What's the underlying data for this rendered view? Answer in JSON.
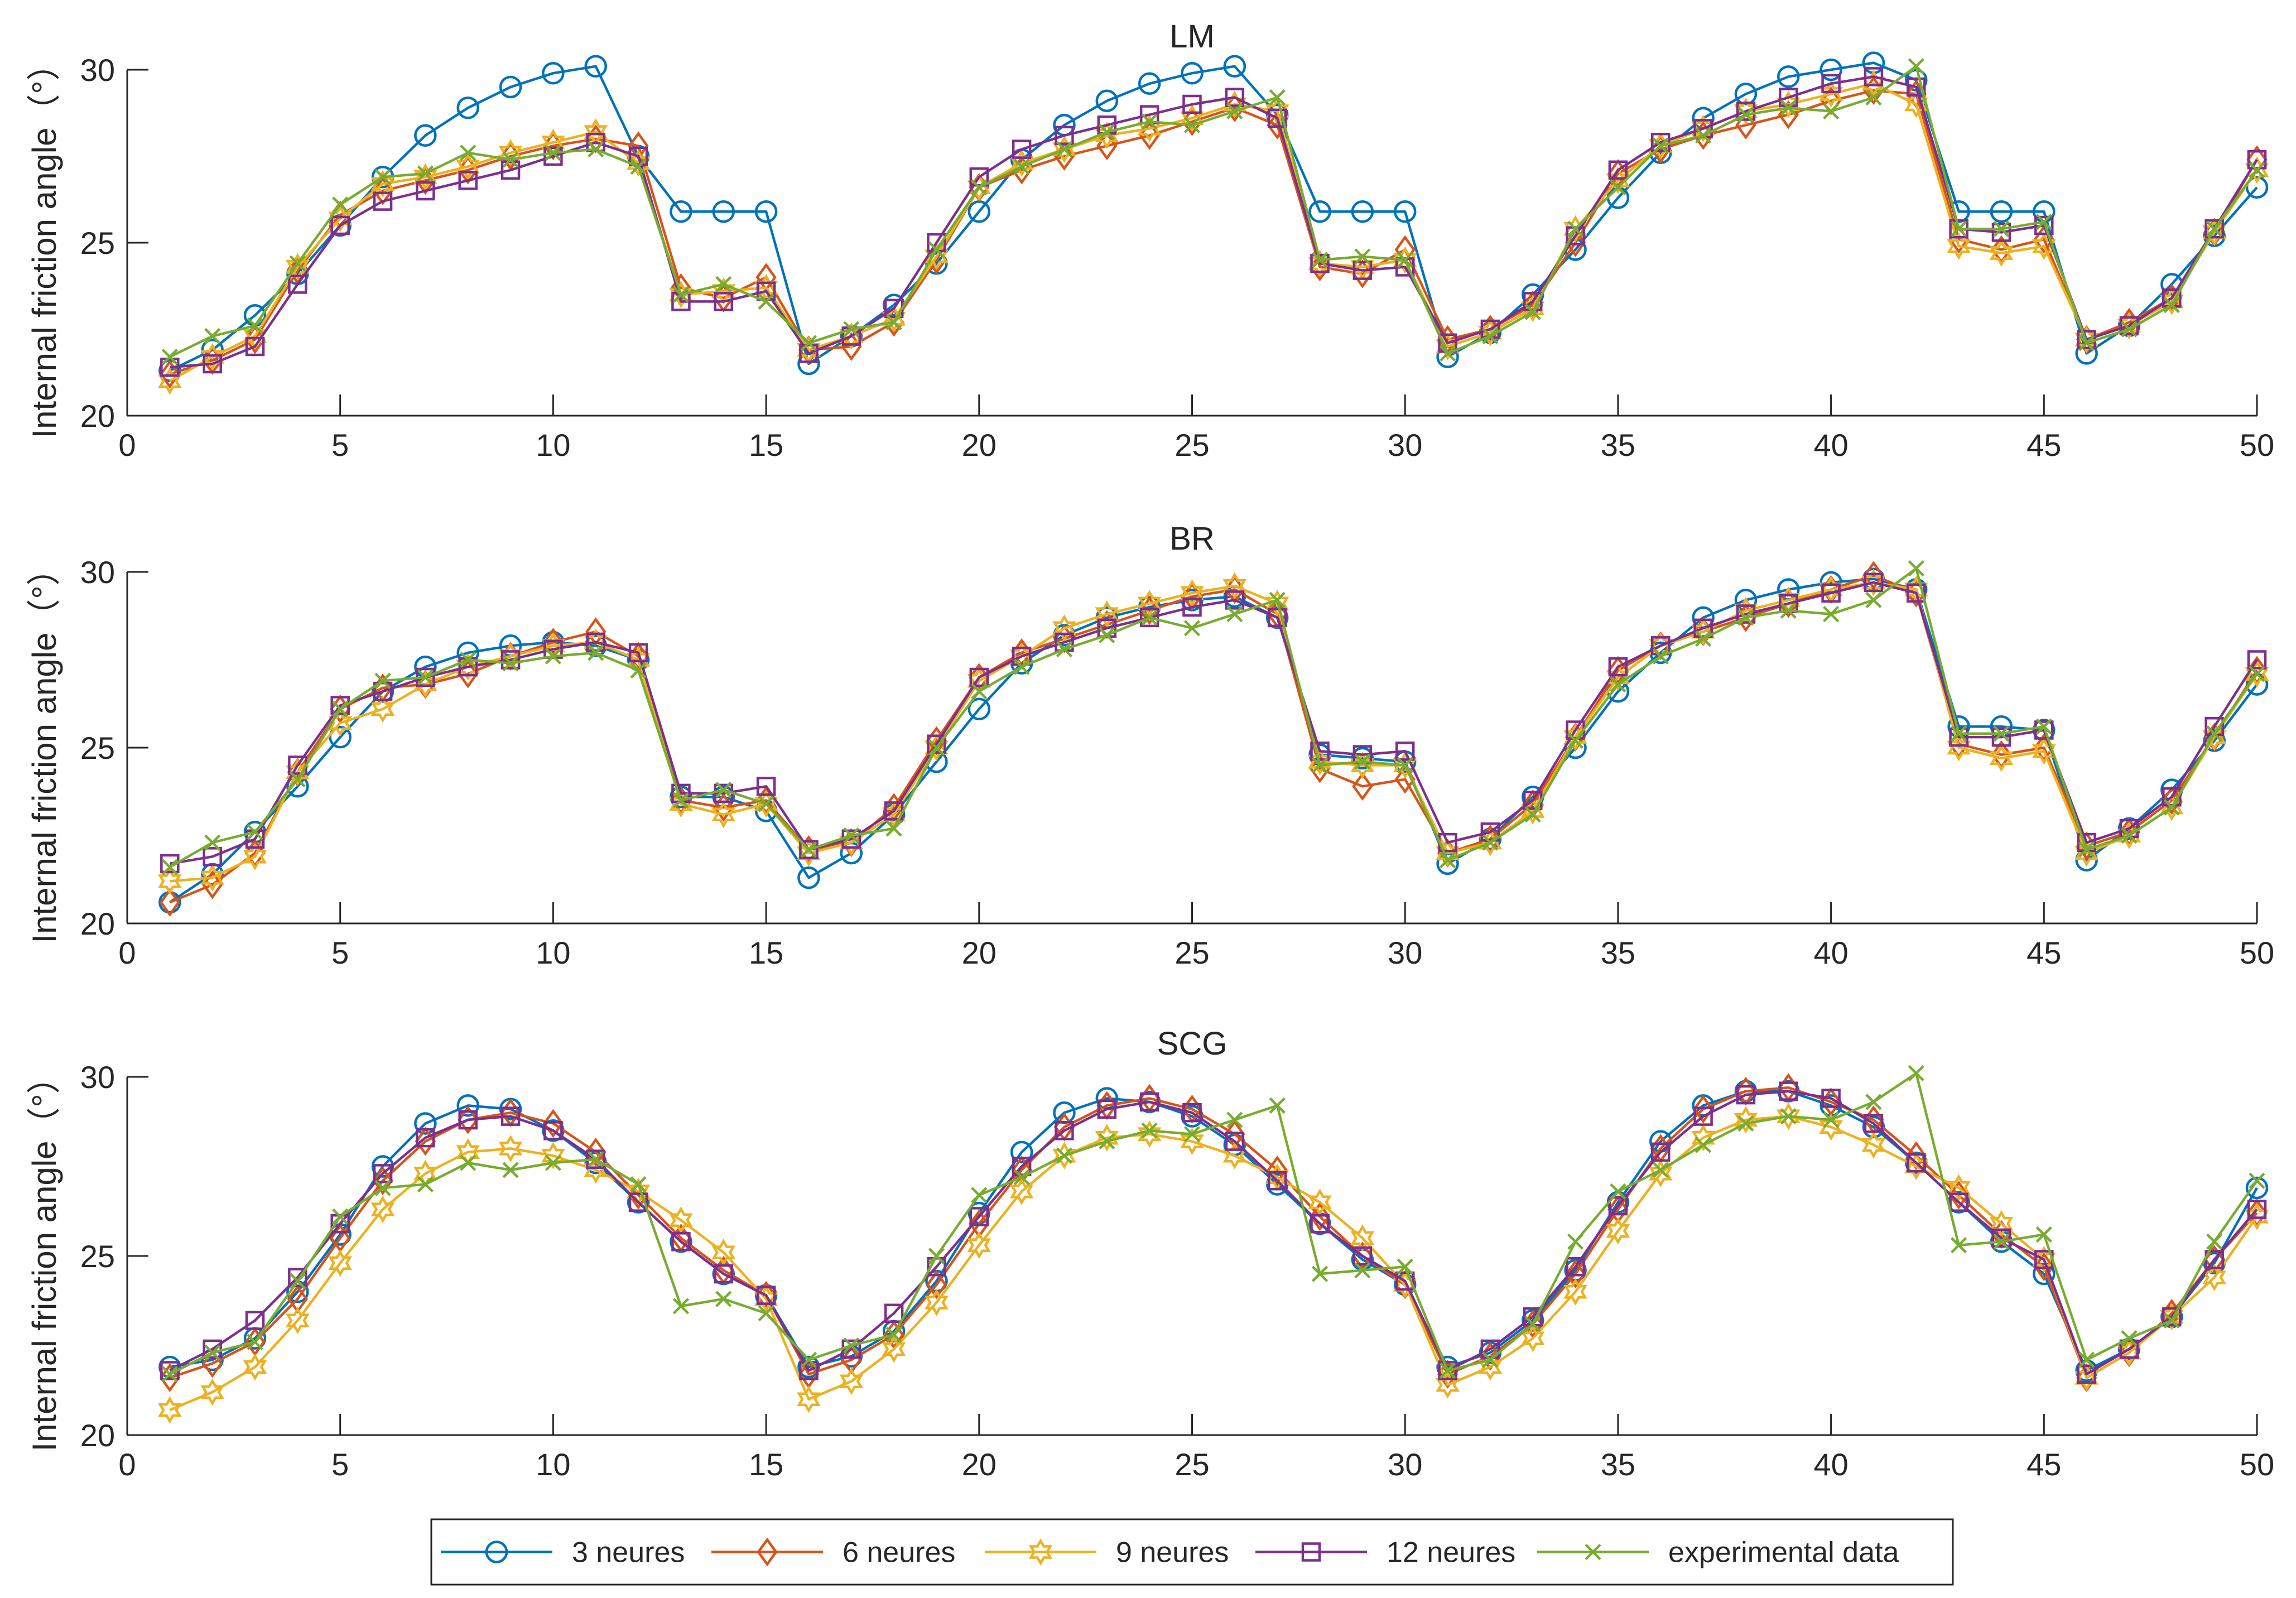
{
  "chart_data": [
    {
      "type": "line",
      "title": "LM",
      "ylabel": "Internal friction angle（°）",
      "xlim": [
        0,
        50
      ],
      "ylim": [
        20,
        30
      ],
      "xticks": [
        0,
        5,
        10,
        15,
        20,
        25,
        30,
        35,
        40,
        45,
        50
      ],
      "yticks": [
        20,
        25,
        30
      ],
      "x": [
        1,
        2,
        3,
        4,
        5,
        6,
        7,
        8,
        9,
        10,
        11,
        12,
        13,
        14,
        15,
        16,
        17,
        18,
        19,
        20,
        21,
        22,
        23,
        24,
        25,
        26,
        27,
        28,
        29,
        30,
        31,
        32,
        33,
        34,
        35,
        36,
        37,
        38,
        39,
        40,
        41,
        42,
        43,
        44,
        45,
        46,
        47,
        48,
        49,
        50
      ],
      "series": [
        {
          "name": "3 neures",
          "values": [
            21.3,
            21.9,
            22.9,
            24.1,
            25.5,
            26.9,
            28.1,
            28.9,
            29.5,
            29.9,
            30.1,
            27.5,
            25.9,
            25.9,
            25.9,
            21.5,
            22.3,
            23.2,
            24.4,
            25.9,
            27.4,
            28.4,
            29.1,
            29.6,
            29.9,
            30.1,
            28.7,
            25.9,
            25.9,
            25.9,
            21.7,
            22.4,
            23.5,
            24.8,
            26.3,
            27.6,
            28.6,
            29.3,
            29.8,
            30.0,
            30.2,
            29.7,
            25.9,
            25.9,
            25.9,
            21.8,
            22.6,
            23.8,
            25.2,
            26.6
          ]
        },
        {
          "name": "6 neures",
          "values": [
            21.2,
            21.6,
            22.2,
            24.2,
            25.8,
            26.5,
            26.8,
            27.1,
            27.5,
            27.8,
            28.0,
            27.8,
            23.7,
            23.4,
            24.0,
            21.9,
            22.0,
            22.7,
            24.5,
            26.6,
            27.1,
            27.5,
            27.8,
            28.1,
            28.5,
            28.9,
            28.4,
            24.3,
            24.1,
            24.8,
            22.2,
            22.5,
            23.2,
            25.0,
            27.0,
            27.7,
            28.1,
            28.4,
            28.7,
            29.1,
            29.4,
            29.3,
            25.1,
            24.8,
            25.1,
            22.2,
            22.7,
            23.4,
            25.3,
            27.4
          ]
        },
        {
          "name": "9 neures",
          "values": [
            21.0,
            21.7,
            22.3,
            24.3,
            25.7,
            26.7,
            26.9,
            27.2,
            27.6,
            27.9,
            28.2,
            27.3,
            23.5,
            23.6,
            23.7,
            21.9,
            22.3,
            22.8,
            24.6,
            26.6,
            27.3,
            27.7,
            28.1,
            28.3,
            28.6,
            29.0,
            28.8,
            24.4,
            24.3,
            24.5,
            22.0,
            22.4,
            23.1,
            25.4,
            26.8,
            27.8,
            28.3,
            28.8,
            29.0,
            29.3,
            29.6,
            29.0,
            24.9,
            24.7,
            24.9,
            22.2,
            22.6,
            23.3,
            25.3,
            27.1
          ]
        },
        {
          "name": "12 neures",
          "values": [
            21.4,
            21.5,
            22.0,
            23.8,
            25.5,
            26.2,
            26.5,
            26.8,
            27.1,
            27.5,
            27.9,
            27.5,
            23.3,
            23.3,
            23.6,
            21.8,
            22.3,
            23.1,
            25.0,
            26.9,
            27.7,
            28.1,
            28.4,
            28.7,
            29.0,
            29.2,
            28.6,
            24.4,
            24.2,
            24.3,
            22.1,
            22.5,
            23.3,
            25.2,
            27.1,
            27.9,
            28.3,
            28.8,
            29.2,
            29.6,
            29.8,
            29.5,
            25.4,
            25.3,
            25.5,
            22.2,
            22.6,
            23.4,
            25.4,
            27.4
          ]
        },
        {
          "name": "experimental data",
          "values": [
            21.7,
            22.3,
            22.6,
            24.4,
            26.1,
            26.9,
            27.0,
            27.6,
            27.4,
            27.6,
            27.7,
            27.2,
            23.5,
            23.8,
            23.3,
            22.1,
            22.5,
            22.7,
            24.8,
            26.6,
            27.2,
            27.7,
            28.2,
            28.5,
            28.4,
            28.8,
            29.2,
            24.5,
            24.6,
            24.5,
            21.8,
            22.3,
            23.0,
            25.4,
            26.6,
            27.8,
            28.1,
            28.7,
            28.9,
            28.8,
            29.2,
            30.1,
            25.4,
            25.4,
            25.6,
            22.1,
            22.5,
            23.2,
            25.4,
            27.1
          ]
        }
      ]
    },
    {
      "type": "line",
      "title": "BR",
      "ylabel": "Internal friction angle（°）",
      "xlim": [
        0,
        50
      ],
      "ylim": [
        20,
        30
      ],
      "xticks": [
        0,
        5,
        10,
        15,
        20,
        25,
        30,
        35,
        40,
        45,
        50
      ],
      "yticks": [
        20,
        25,
        30
      ],
      "x": [
        1,
        2,
        3,
        4,
        5,
        6,
        7,
        8,
        9,
        10,
        11,
        12,
        13,
        14,
        15,
        16,
        17,
        18,
        19,
        20,
        21,
        22,
        23,
        24,
        25,
        26,
        27,
        28,
        29,
        30,
        31,
        32,
        33,
        34,
        35,
        36,
        37,
        38,
        39,
        40,
        41,
        42,
        43,
        44,
        45,
        46,
        47,
        48,
        49,
        50
      ],
      "series": [
        {
          "name": "3 neures",
          "values": [
            20.6,
            21.4,
            22.6,
            23.9,
            25.3,
            26.6,
            27.3,
            27.7,
            27.9,
            28.0,
            27.9,
            27.5,
            23.6,
            23.6,
            23.2,
            21.3,
            22.0,
            23.1,
            24.6,
            26.1,
            27.4,
            28.2,
            28.7,
            29.0,
            29.2,
            29.3,
            28.7,
            24.8,
            24.7,
            24.6,
            21.7,
            22.4,
            23.6,
            25.0,
            26.6,
            27.7,
            28.7,
            29.2,
            29.5,
            29.7,
            29.8,
            29.5,
            25.6,
            25.6,
            25.5,
            21.8,
            22.7,
            23.8,
            25.2,
            26.8
          ]
        },
        {
          "name": "6 neures",
          "values": [
            20.6,
            21.1,
            22.0,
            24.3,
            26.1,
            26.7,
            26.8,
            27.1,
            27.6,
            28.0,
            28.3,
            27.6,
            23.5,
            23.3,
            23.5,
            22.1,
            22.3,
            23.3,
            25.2,
            27.0,
            27.7,
            28.1,
            28.5,
            28.9,
            29.3,
            29.5,
            28.8,
            24.4,
            23.9,
            24.1,
            22.0,
            22.4,
            23.4,
            25.3,
            27.2,
            27.9,
            28.3,
            28.7,
            29.1,
            29.5,
            29.9,
            29.4,
            25.1,
            24.8,
            25.0,
            22.2,
            22.6,
            23.5,
            25.3,
            27.2
          ]
        },
        {
          "name": "9 neures",
          "values": [
            21.2,
            21.3,
            21.9,
            24.3,
            25.7,
            26.1,
            26.8,
            27.3,
            27.6,
            27.9,
            28.0,
            27.5,
            23.4,
            23.1,
            23.4,
            22.0,
            22.3,
            23.1,
            25.0,
            26.9,
            27.6,
            28.4,
            28.8,
            29.1,
            29.4,
            29.6,
            29.1,
            24.6,
            24.5,
            24.5,
            22.0,
            22.3,
            23.2,
            25.3,
            27.0,
            27.9,
            28.3,
            28.9,
            29.2,
            29.5,
            29.7,
            29.5,
            25.0,
            24.7,
            24.9,
            22.0,
            22.5,
            23.3,
            25.3,
            27.1
          ]
        },
        {
          "name": "12 neures",
          "values": [
            21.7,
            21.9,
            22.4,
            24.5,
            26.2,
            26.6,
            27.0,
            27.3,
            27.5,
            27.8,
            28.0,
            27.7,
            23.7,
            23.7,
            23.9,
            22.1,
            22.4,
            23.2,
            25.1,
            27.0,
            27.6,
            28.0,
            28.4,
            28.7,
            29.0,
            29.2,
            28.7,
            24.9,
            24.8,
            24.9,
            22.3,
            22.6,
            23.5,
            25.5,
            27.3,
            27.9,
            28.4,
            28.8,
            29.1,
            29.4,
            29.7,
            29.4,
            25.3,
            25.3,
            25.5,
            22.3,
            22.7,
            23.6,
            25.6,
            27.5
          ]
        },
        {
          "name": "experimental data",
          "values": [
            21.6,
            22.3,
            22.6,
            24.1,
            26.1,
            26.9,
            27.0,
            27.5,
            27.4,
            27.6,
            27.7,
            27.2,
            23.5,
            23.8,
            23.4,
            22.1,
            22.5,
            22.7,
            25.0,
            26.6,
            27.3,
            27.8,
            28.2,
            28.7,
            28.4,
            28.8,
            29.2,
            24.5,
            24.6,
            24.5,
            21.8,
            22.3,
            23.1,
            25.2,
            26.8,
            27.6,
            28.1,
            28.7,
            28.9,
            28.8,
            29.2,
            30.1,
            25.4,
            25.4,
            25.6,
            22.1,
            22.5,
            23.3,
            25.4,
            27.1
          ]
        }
      ]
    },
    {
      "type": "line",
      "title": "SCG",
      "ylabel": "Internal friction angle（°）",
      "xlim": [
        0,
        50
      ],
      "ylim": [
        20,
        30
      ],
      "xticks": [
        0,
        5,
        10,
        15,
        20,
        25,
        30,
        35,
        40,
        45,
        50
      ],
      "yticks": [
        20,
        25,
        30
      ],
      "x": [
        1,
        2,
        3,
        4,
        5,
        6,
        7,
        8,
        9,
        10,
        11,
        12,
        13,
        14,
        15,
        16,
        17,
        18,
        19,
        20,
        21,
        22,
        23,
        24,
        25,
        26,
        27,
        28,
        29,
        30,
        31,
        32,
        33,
        34,
        35,
        36,
        37,
        38,
        39,
        40,
        41,
        42,
        43,
        44,
        45,
        46,
        47,
        48,
        49,
        50
      ],
      "series": [
        {
          "name": "3 neures",
          "values": [
            21.9,
            22.1,
            22.7,
            24.0,
            25.6,
            27.5,
            28.7,
            29.2,
            29.1,
            28.5,
            27.6,
            26.5,
            25.4,
            24.5,
            23.9,
            21.9,
            22.2,
            22.9,
            24.3,
            26.2,
            27.9,
            29.0,
            29.4,
            29.3,
            28.9,
            28.1,
            27.0,
            25.9,
            24.9,
            24.2,
            21.9,
            22.3,
            23.2,
            24.6,
            26.5,
            28.2,
            29.2,
            29.6,
            29.6,
            29.2,
            28.6,
            27.6,
            26.5,
            25.4,
            24.5,
            21.8,
            22.4,
            23.3,
            24.8,
            26.9
          ]
        },
        {
          "name": "6 neures",
          "values": [
            21.6,
            22.0,
            22.6,
            23.8,
            25.5,
            27.1,
            28.2,
            28.8,
            29.0,
            28.7,
            27.9,
            26.7,
            25.5,
            24.6,
            23.9,
            21.7,
            22.1,
            22.8,
            24.2,
            25.9,
            27.4,
            28.6,
            29.2,
            29.4,
            29.1,
            28.4,
            27.4,
            26.1,
            25.0,
            24.2,
            21.7,
            22.2,
            23.1,
            24.5,
            26.3,
            28.0,
            29.1,
            29.6,
            29.7,
            29.3,
            28.8,
            27.8,
            26.7,
            25.6,
            24.7,
            21.6,
            22.3,
            23.4,
            24.9,
            26.2
          ]
        },
        {
          "name": "9 neures",
          "values": [
            20.7,
            21.2,
            21.9,
            23.2,
            24.8,
            26.3,
            27.3,
            27.9,
            28.0,
            27.8,
            27.4,
            26.8,
            26.0,
            25.1,
            23.8,
            21.0,
            21.5,
            22.4,
            23.7,
            25.3,
            26.8,
            27.8,
            28.3,
            28.4,
            28.2,
            27.8,
            27.2,
            26.5,
            25.5,
            24.2,
            21.4,
            21.9,
            22.7,
            24.0,
            25.7,
            27.3,
            28.3,
            28.8,
            28.9,
            28.6,
            28.1,
            27.5,
            26.9,
            25.9,
            24.9,
            21.6,
            22.3,
            23.3,
            24.4,
            26.1
          ]
        },
        {
          "name": "12 neures",
          "values": [
            21.8,
            22.4,
            23.2,
            24.4,
            25.9,
            27.3,
            28.3,
            28.8,
            28.9,
            28.5,
            27.7,
            26.5,
            25.4,
            24.5,
            23.9,
            21.8,
            22.4,
            23.4,
            24.7,
            26.1,
            27.5,
            28.5,
            29.1,
            29.3,
            29.0,
            28.2,
            27.1,
            25.9,
            25.0,
            24.3,
            21.8,
            22.4,
            23.3,
            24.7,
            26.4,
            27.9,
            28.9,
            29.5,
            29.6,
            29.4,
            28.7,
            27.6,
            26.5,
            25.5,
            24.9,
            21.7,
            22.4,
            23.3,
            24.9,
            26.3
          ]
        },
        {
          "name": "experimental data",
          "values": [
            21.7,
            22.3,
            22.6,
            24.3,
            26.1,
            26.9,
            27.0,
            27.6,
            27.4,
            27.6,
            27.7,
            27.0,
            23.6,
            23.8,
            23.4,
            22.1,
            22.5,
            22.8,
            25.0,
            26.7,
            27.2,
            27.8,
            28.2,
            28.5,
            28.4,
            28.8,
            29.2,
            24.5,
            24.6,
            24.7,
            21.8,
            22.1,
            23.1,
            25.4,
            26.8,
            27.4,
            28.1,
            28.7,
            28.9,
            28.8,
            29.3,
            30.1,
            25.3,
            25.4,
            25.6,
            22.1,
            22.7,
            23.2,
            25.4,
            27.1
          ]
        }
      ]
    }
  ],
  "legend": {
    "position": "bottom-center",
    "items": [
      {
        "label": "3 neures",
        "color": "#0072BD",
        "marker": "circle"
      },
      {
        "label": "6 neures",
        "color": "#D95319",
        "marker": "diamond"
      },
      {
        "label": "9 neures",
        "color": "#EDB120",
        "marker": "hexagram"
      },
      {
        "label": "12 neures",
        "color": "#7E2F8E",
        "marker": "square"
      },
      {
        "label": "experimental data",
        "color": "#77AC30",
        "marker": "x"
      }
    ]
  }
}
